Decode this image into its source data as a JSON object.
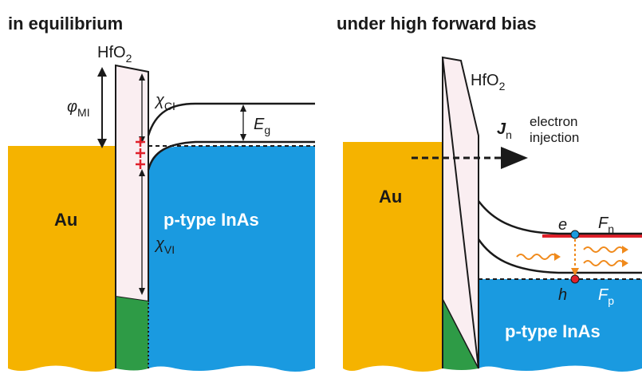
{
  "left_panel": {
    "title": "in equilibrium",
    "oxide_label": "HfO",
    "oxide_sub": "2",
    "phi_label": "φ",
    "phi_sub": "MI",
    "chi_ci_label": "χ",
    "chi_ci_sub": "CI",
    "chi_vi_label": "χ",
    "chi_vi_sub": "VI",
    "eg_label": "E",
    "eg_sub": "g",
    "metal_label": "Au",
    "semi_label": "p-type InAs"
  },
  "right_panel": {
    "title": "under high forward bias",
    "oxide_label": "HfO",
    "oxide_sub": "2",
    "jn_label": "J",
    "jn_sub": "n",
    "injection_line1": "electron",
    "injection_line2": "injection",
    "metal_label": "Au",
    "semi_label": "p-type InAs",
    "electron_label": "e",
    "hole_label": "h",
    "fn_label": "F",
    "fn_sub": "n",
    "fp_label": "F",
    "fp_sub": "p"
  },
  "colors": {
    "gold": "#F5B300",
    "blue": "#1A9AE0",
    "oxide": "#FAEEF1",
    "green": "#2E9B46",
    "red": "#E0202A",
    "orange": "#F08A1C",
    "line": "#1a1a1a"
  }
}
